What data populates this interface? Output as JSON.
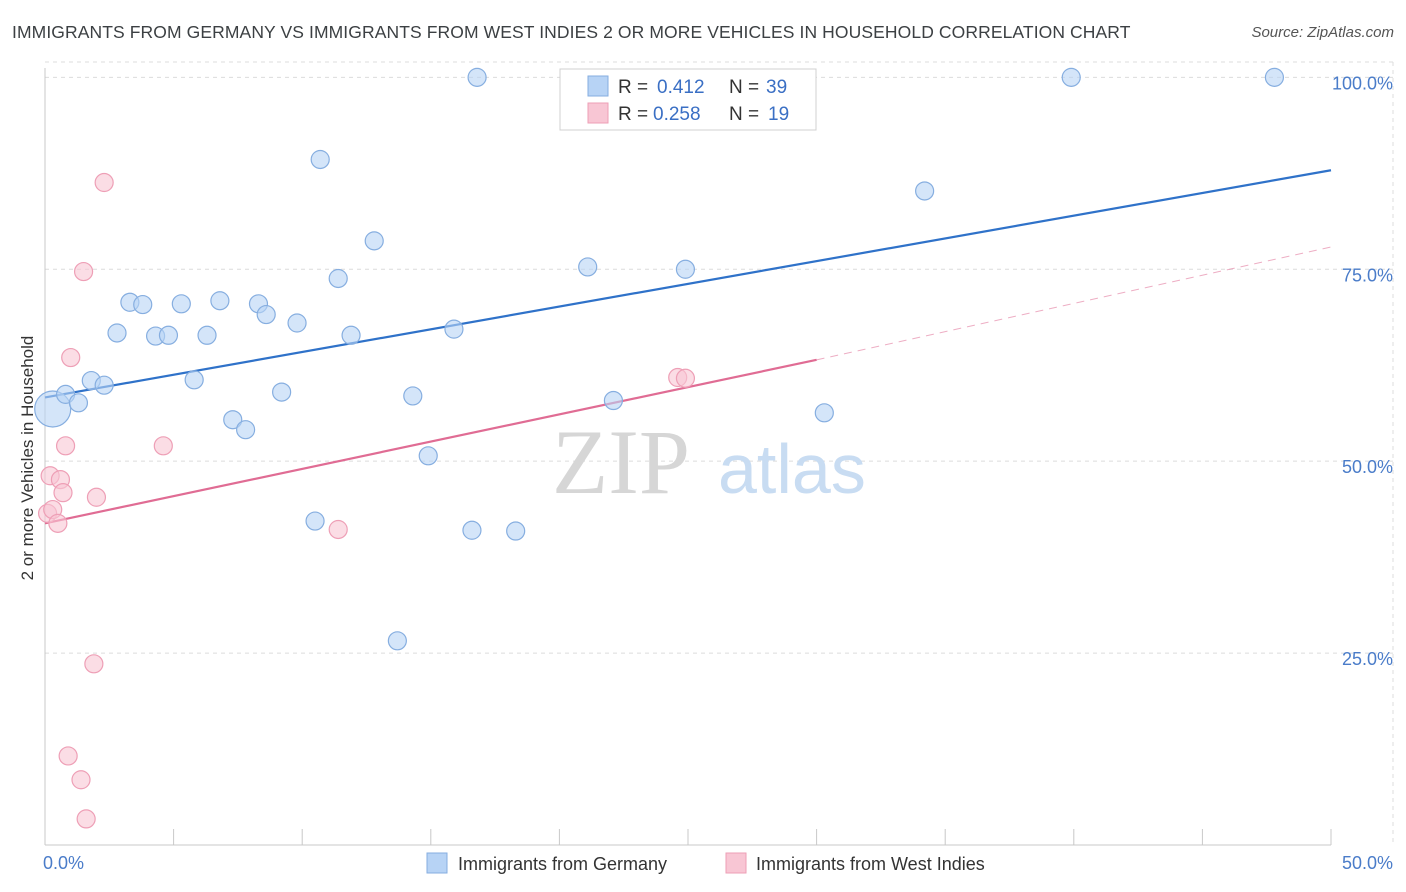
{
  "title": "IMMIGRANTS FROM GERMANY VS IMMIGRANTS FROM WEST INDIES 2 OR MORE VEHICLES IN HOUSEHOLD CORRELATION CHART",
  "source": "Source: ZipAtlas.com",
  "watermark": {
    "zip": "ZIP",
    "atlas": "atlas"
  },
  "colors": {
    "germany_fill": "#b7d3f5",
    "germany_stroke": "#86aee0",
    "germany_line": "#2f72c9",
    "westindies_fill": "#f8c6d4",
    "westindies_stroke": "#ee9fb6",
    "westindies_line": "#e06c94",
    "grid": "#dcdcdc",
    "tick_text": "#4a7cc9"
  },
  "legend": {
    "rows": [
      {
        "r_label": "R =",
        "r_value": "0.412",
        "n_label": "N =",
        "n_value": "39"
      },
      {
        "r_label": "R =",
        "r_value": "0.258",
        "n_label": "N =",
        "n_value": "19"
      }
    ]
  },
  "chart_data": {
    "type": "scatter",
    "title": "IMMIGRANTS FROM GERMANY VS IMMIGRANTS FROM WEST INDIES 2 OR MORE VEHICLES IN HOUSEHOLD CORRELATION CHART",
    "xlabel": "",
    "ylabel": "2 or more Vehicles in Household",
    "xlim": [
      0,
      50
    ],
    "ylim": [
      0,
      102
    ],
    "x_tick_labels": [
      "0.0%",
      "50.0%"
    ],
    "y_ticks": [
      25,
      50,
      75,
      100
    ],
    "y_tick_labels": [
      "25.0%",
      "50.0%",
      "75.0%",
      "100.0%"
    ],
    "grid": true,
    "legend_position": "top-center",
    "series": [
      {
        "name": "Immigrants from Germany",
        "points": [
          [
            0.3,
            56.8,
            2.0
          ],
          [
            0.8,
            58.7,
            1
          ],
          [
            1.3,
            57.6,
            1
          ],
          [
            1.8,
            60.5,
            1
          ],
          [
            2.3,
            59.9,
            1
          ],
          [
            2.8,
            66.7,
            1
          ],
          [
            3.3,
            70.7,
            1
          ],
          [
            3.8,
            70.4,
            1
          ],
          [
            4.3,
            66.3,
            1
          ],
          [
            4.8,
            66.4,
            1
          ],
          [
            5.3,
            70.5,
            1
          ],
          [
            5.8,
            60.6,
            1
          ],
          [
            6.3,
            66.4,
            1
          ],
          [
            6.8,
            70.9,
            1
          ],
          [
            7.3,
            55.4,
            1
          ],
          [
            7.8,
            54.1,
            1
          ],
          [
            8.3,
            70.5,
            1
          ],
          [
            8.6,
            69.1,
            1
          ],
          [
            9.2,
            59.0,
            1
          ],
          [
            9.8,
            68.0,
            1
          ],
          [
            10.5,
            42.2,
            1
          ],
          [
            10.7,
            89.3,
            1
          ],
          [
            11.4,
            73.8,
            1
          ],
          [
            11.9,
            66.4,
            1
          ],
          [
            12.8,
            78.7,
            1
          ],
          [
            13.7,
            26.6,
            1
          ],
          [
            14.3,
            58.5,
            1
          ],
          [
            14.9,
            50.7,
            1
          ],
          [
            15.9,
            67.2,
            1
          ],
          [
            16.6,
            41.0,
            1
          ],
          [
            16.8,
            100.0,
            1
          ],
          [
            18.3,
            40.9,
            1
          ],
          [
            21.1,
            75.3,
            1
          ],
          [
            22.1,
            57.9,
            1
          ],
          [
            24.9,
            75.0,
            1
          ],
          [
            30.3,
            56.3,
            1
          ],
          [
            34.2,
            85.2,
            1
          ],
          [
            39.9,
            100.0,
            1
          ],
          [
            47.8,
            100.0,
            1
          ]
        ],
        "trend": {
          "x": [
            0,
            50
          ],
          "y": [
            58.3,
            87.9
          ]
        }
      },
      {
        "name": "Immigrants from West Indies",
        "points": [
          [
            0.1,
            43.2,
            1
          ],
          [
            0.2,
            48.1,
            1
          ],
          [
            0.3,
            43.7,
            1
          ],
          [
            0.5,
            41.9,
            1
          ],
          [
            0.6,
            47.6,
            1
          ],
          [
            0.7,
            45.9,
            1
          ],
          [
            0.8,
            52.0,
            1
          ],
          [
            0.9,
            11.6,
            1
          ],
          [
            1.0,
            63.5,
            1
          ],
          [
            1.4,
            8.5,
            1
          ],
          [
            1.5,
            74.7,
            1
          ],
          [
            1.6,
            3.4,
            1
          ],
          [
            1.9,
            23.6,
            1
          ],
          [
            2.0,
            45.3,
            1
          ],
          [
            2.3,
            86.3,
            1
          ],
          [
            4.6,
            52.0,
            1
          ],
          [
            11.4,
            41.1,
            1
          ],
          [
            24.6,
            60.9,
            1
          ],
          [
            24.9,
            60.8,
            1
          ]
        ],
        "trend": {
          "x": [
            0,
            30
          ],
          "y": [
            41.9,
            63.2
          ]
        },
        "trend_extension": {
          "x": [
            30,
            50
          ],
          "y": [
            63.2,
            77.9
          ]
        }
      }
    ]
  }
}
